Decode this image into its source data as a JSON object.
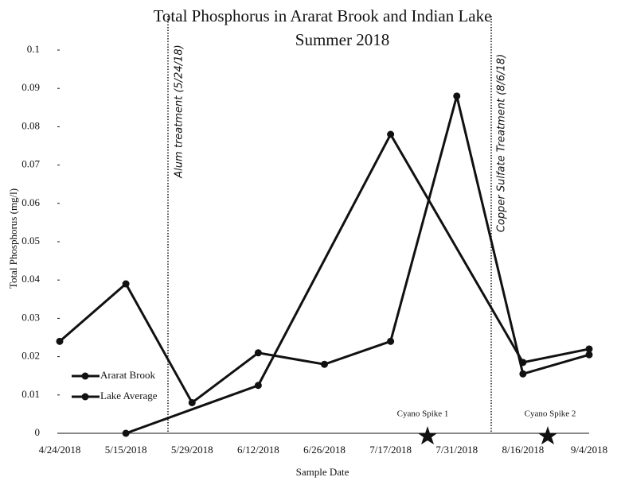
{
  "chart_data": {
    "type": "line",
    "title": "Total Phosphorus in Ararat Brook and Indian Lake",
    "subtitle": "Summer 2018",
    "x_label": "Sample Date",
    "y_label": "Total Phosphorus (mg/l)",
    "categories": [
      "4/24/2018",
      "5/15/2018",
      "5/29/2018",
      "6/12/2018",
      "6/26/2018",
      "7/17/2018",
      "7/31/2018",
      "8/16/2018",
      "9/4/2018"
    ],
    "series": [
      {
        "name": "Ararat Brook",
        "color": "#111111",
        "x": [
          "4/24/2018",
          "5/15/2018",
          "5/29/2018",
          "6/12/2018",
          "6/26/2018",
          "7/17/2018",
          "7/31/2018",
          "8/16/2018",
          "9/4/2018"
        ],
        "values": [
          0.024,
          0.039,
          0.008,
          0.021,
          0.018,
          0.024,
          0.088,
          0.0155,
          0.0205
        ]
      },
      {
        "name": "Lake Average",
        "color": "#111111",
        "x": [
          "5/15/2018",
          "6/12/2018",
          "7/17/2018",
          "8/16/2018",
          "9/4/2018"
        ],
        "values": [
          0,
          0.0125,
          0.078,
          0.0185,
          0.022
        ]
      }
    ],
    "ylim": [
      0,
      0.1
    ],
    "yticks": [
      0,
      0.01,
      0.02,
      0.03,
      0.04,
      0.05,
      0.06,
      0.07,
      0.08,
      0.09,
      0.1
    ],
    "annotations": [
      "Alum treatment (5/24/18)",
      "Copper Sulfate Treatment (8/6/18)",
      "Cyano Spike 1",
      "Cyano Spike 2"
    ],
    "grid": false
  }
}
